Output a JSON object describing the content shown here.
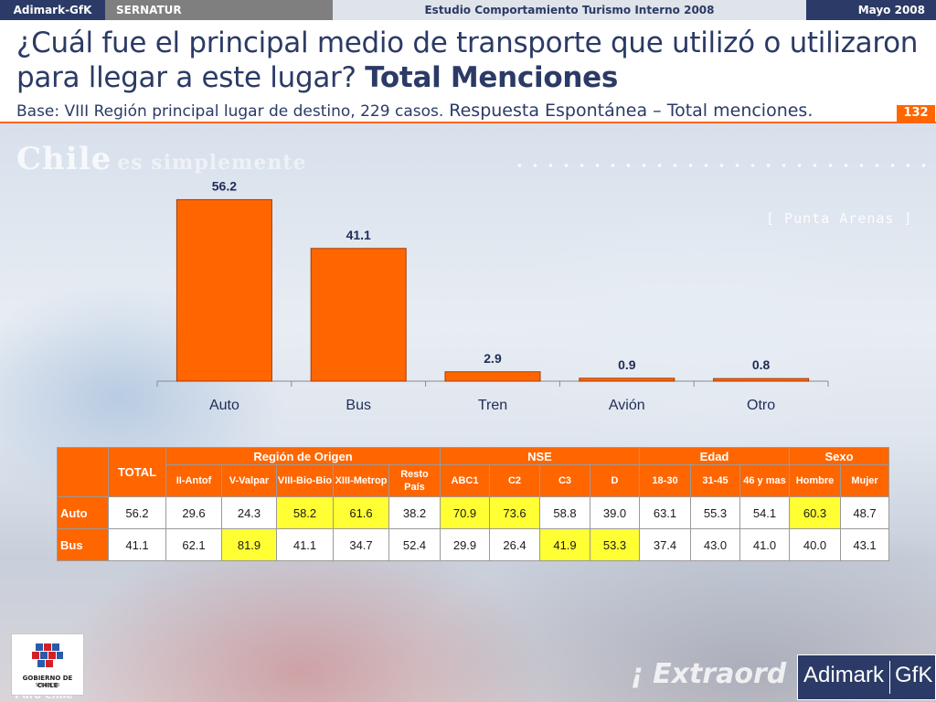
{
  "header": {
    "brand": "Adimark-GfK",
    "client": "SERNATUR",
    "study": "Estudio Comportamiento Turismo Interno 2008",
    "date": "Mayo 2008"
  },
  "title": {
    "question": "¿Cuál fue el principal medio de transporte que utilizó o utilizaron para llegar a este lugar?",
    "emphasis": "Total Menciones"
  },
  "subtitle": {
    "base": "Base: VIII Región principal lugar de destino, 229 casos.",
    "note": "Respuesta Espontánea – Total menciones."
  },
  "page_number": "132",
  "background": {
    "watermark": "Chile",
    "watermark_tail": "es simplemente",
    "place": "[ Punta Arenas ]",
    "slogan": "¡ Extraord",
    "footer": "Puro Chile"
  },
  "chart_data": {
    "type": "bar",
    "categories": [
      "Auto",
      "Bus",
      "Tren",
      "Avión",
      "Otro"
    ],
    "values": [
      56.2,
      41.1,
      2.9,
      0.9,
      0.8
    ],
    "value_labels": [
      "56.2",
      "41.1",
      "2.9",
      "0.9",
      "0.8"
    ],
    "ylim": [
      0,
      60
    ],
    "grid": false,
    "bar_color": "#ff6600",
    "bar_edge_color": "#a83a00",
    "title": "",
    "xlabel": "",
    "ylabel": ""
  },
  "table": {
    "corner": "",
    "total_header": "TOTAL",
    "groups": [
      {
        "label": "Región de Origen",
        "cols": [
          "II-Antof",
          "V-Valpar",
          "VIII-Bio-Bio",
          "XIII-Metrop",
          "Resto País"
        ]
      },
      {
        "label": "NSE",
        "cols": [
          "ABC1",
          "C2",
          "C3",
          "D"
        ]
      },
      {
        "label": "Edad",
        "cols": [
          "18-30",
          "31-45",
          "46 y mas"
        ]
      },
      {
        "label": "Sexo",
        "cols": [
          "Hombre",
          "Mujer"
        ]
      }
    ],
    "rows": [
      {
        "label": "Auto",
        "total": "56.2",
        "values": [
          "29.6",
          "24.3",
          "58.2",
          "61.6",
          "38.2",
          "70.9",
          "73.6",
          "58.8",
          "39.0",
          "63.1",
          "55.3",
          "54.1",
          "60.3",
          "48.7"
        ],
        "highlight": [
          false,
          false,
          true,
          true,
          false,
          true,
          true,
          false,
          false,
          false,
          false,
          false,
          true,
          false
        ]
      },
      {
        "label": "Bus",
        "total": "41.1",
        "values": [
          "62.1",
          "81.9",
          "41.1",
          "34.7",
          "52.4",
          "29.9",
          "26.4",
          "41.9",
          "53.3",
          "37.4",
          "43.0",
          "41.0",
          "40.0",
          "43.1"
        ],
        "highlight": [
          false,
          true,
          false,
          false,
          false,
          false,
          false,
          true,
          true,
          false,
          false,
          false,
          false,
          false
        ]
      }
    ],
    "header_color": "#ff6600",
    "highlight_color": "#ffff33"
  },
  "logos": {
    "gobierno_line1": "GOBIERNO DE CHILE",
    "gobierno_line2": "SERNATUR",
    "adimark": "Adimark",
    "gfk": "GfK"
  }
}
